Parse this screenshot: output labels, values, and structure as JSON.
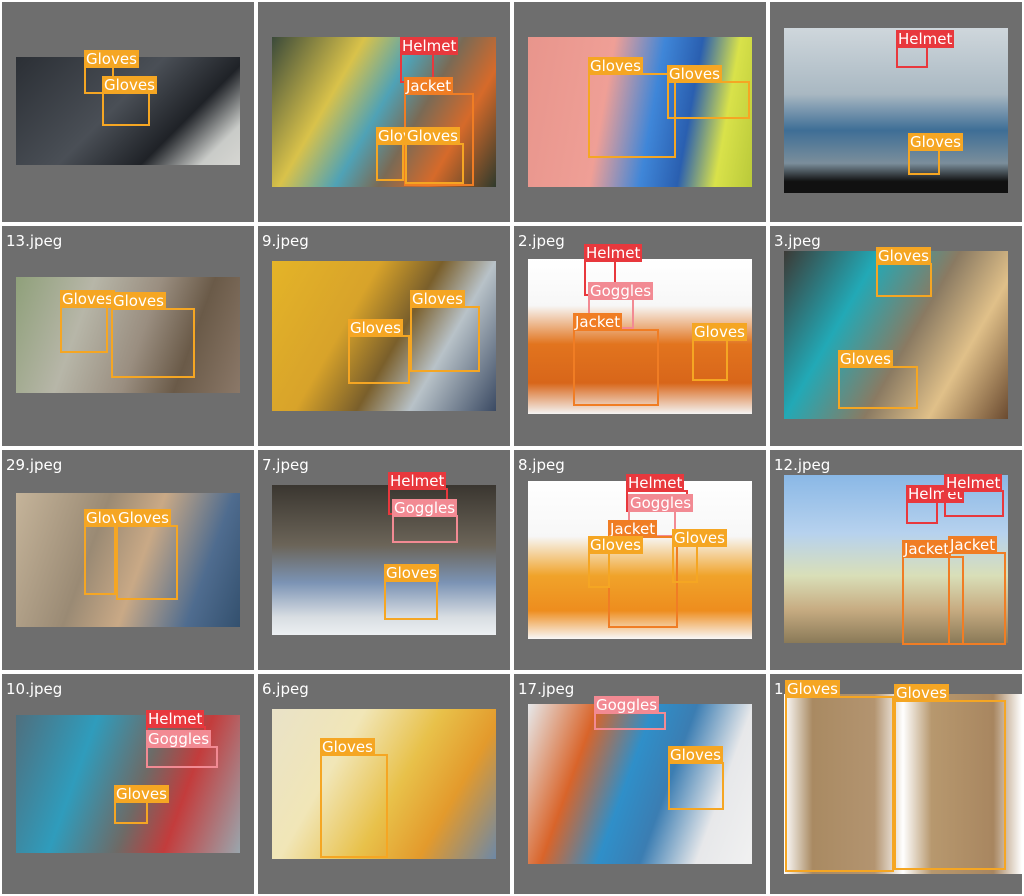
{
  "label_colors": {
    "Helmet": "#e8383d",
    "Goggles": "#f28a93",
    "Jacket": "#f07d24",
    "Gloves": "#f5a623"
  },
  "tiles": [
    {
      "filename": "",
      "bg": "linear-gradient(135deg,#2b2f35 0%,#4a4f56 45%,#1f2227 70%,#c9cbc8 88%,#d6d6d2 100%)",
      "detections": [
        {
          "label": "Gloves"
        },
        {
          "label": "Gloves"
        }
      ]
    },
    {
      "filename": "",
      "bg": "linear-gradient(120deg,#3b4a3a 0%,#d9c24a 30%,#4fa2b6 48%,#7a6a55 62%,#d66a2a 78%,#2f3a2c 100%)",
      "detections": [
        {
          "label": "Helmet"
        },
        {
          "label": "Jacket"
        },
        {
          "label": "Gloves"
        },
        {
          "label": "Gloves"
        }
      ]
    },
    {
      "filename": "",
      "bg": "linear-gradient(100deg,#e8958c 0%,#ef9f96 35%,#3f86d8 55%,#2a5fb0 70%,#d9e24a 85%,#b9c93a 100%)",
      "detections": [
        {
          "label": "Gloves"
        },
        {
          "label": "Gloves"
        }
      ]
    },
    {
      "filename": "",
      "bg": "linear-gradient(180deg,#cfd7dc 0%,#a9b8c2 40%,#3e6e96 62%,#7b8e9b 82%,#111111 93%,#111111 100%)",
      "detections": [
        {
          "label": "Helmet"
        },
        {
          "label": "Gloves"
        }
      ]
    },
    {
      "filename": "13.jpeg",
      "bg": "linear-gradient(110deg,#8fa07a 0%,#b7b6a8 30%,#9a8e80 55%,#6a5a48 75%,#8b7868 100%)",
      "detections": [
        {
          "label": "Gloves"
        },
        {
          "label": "Gloves"
        }
      ]
    },
    {
      "filename": "9.jpeg",
      "bg": "linear-gradient(120deg,#e4b428 0%,#d8a32a 35%,#7a5f2b 55%,#b8c2c8 72%,#3b4a63 100%)",
      "detections": [
        {
          "label": "Gloves"
        },
        {
          "label": "Gloves"
        }
      ]
    },
    {
      "filename": "2.jpeg",
      "bg": "linear-gradient(180deg,#ffffff 0%,#f7f7f7 30%,#e2741e 55%,#d8661a 80%,#f4f4f4 100%)",
      "detections": [
        {
          "label": "Helmet"
        },
        {
          "label": "Goggles"
        },
        {
          "label": "Jacket"
        },
        {
          "label": "Gloves"
        }
      ]
    },
    {
      "filename": "3.jpeg",
      "bg": "linear-gradient(120deg,#3c3a36 0%,#22a9b6 30%,#8a7a62 55%,#e0c089 75%,#6a4a30 100%)",
      "detections": [
        {
          "label": "Gloves"
        },
        {
          "label": "Gloves"
        }
      ]
    },
    {
      "filename": "29.jpeg",
      "bg": "linear-gradient(110deg,#c5b49a 0%,#9a8a74 35%,#c9a986 55%,#4f6c8f 80%,#33506e 100%)",
      "detections": [
        {
          "label": "Gloves"
        },
        {
          "label": "Gloves"
        }
      ]
    },
    {
      "filename": "7.jpeg",
      "bg": "linear-gradient(180deg,#3a3630 0%,#6b6458 40%,#7b93b4 65%,#d8dde2 88%,#eceff2 100%)",
      "detections": [
        {
          "label": "Helmet"
        },
        {
          "label": "Goggles"
        },
        {
          "label": "Gloves"
        }
      ]
    },
    {
      "filename": "8.jpeg",
      "bg": "linear-gradient(180deg,#ffffff 0%,#f7f7f7 35%,#f0a32a 60%,#ee8d1e 82%,#f8f8f8 100%)",
      "detections": [
        {
          "label": "Helmet"
        },
        {
          "label": "Goggles"
        },
        {
          "label": "Jacket"
        },
        {
          "label": "Gloves"
        },
        {
          "label": "Gloves"
        }
      ]
    },
    {
      "filename": "12.jpeg",
      "bg": "linear-gradient(180deg,#8ab8e6 0%,#b7d2ee 35%,#d9dfb8 60%,#c7ac82 80%,#8a7a58 100%)",
      "detections": [
        {
          "label": "Helmet"
        },
        {
          "label": "Helmet"
        },
        {
          "label": "Jacket"
        },
        {
          "label": "Jacket"
        }
      ]
    },
    {
      "filename": "10.jpeg",
      "bg": "linear-gradient(110deg,#4f6f7e 0%,#2f9cbc 30%,#6e6a66 55%,#c33c3c 72%,#9aa6ad 100%)",
      "detections": [
        {
          "label": "Helmet"
        },
        {
          "label": "Goggles"
        },
        {
          "label": "Gloves"
        }
      ]
    },
    {
      "filename": "6.jpeg",
      "bg": "linear-gradient(120deg,#e9e2c8 0%,#f1e6b7 30%,#e8c14a 55%,#e39a2c 75%,#6d88a6 100%)",
      "detections": [
        {
          "label": "Gloves"
        }
      ]
    },
    {
      "filename": "17.jpeg",
      "bg": "linear-gradient(110deg,#e6e8ea 0%,#d9642a 25%,#2f8fc9 45%,#3b7db2 60%,#e7e8ea 80%,#f1f1f1 100%)",
      "detections": [
        {
          "label": "Goggles"
        },
        {
          "label": "Gloves"
        }
      ]
    },
    {
      "filename": "1",
      "bg": "linear-gradient(90deg,#ffffff 0%,#a98a62 12%,#b39470 38%,#ffffff 50%,#b7986e 62%,#a88660 88%,#ffffff 100%)",
      "detections": [
        {
          "label": "Gloves"
        },
        {
          "label": "Gloves"
        }
      ]
    }
  ]
}
